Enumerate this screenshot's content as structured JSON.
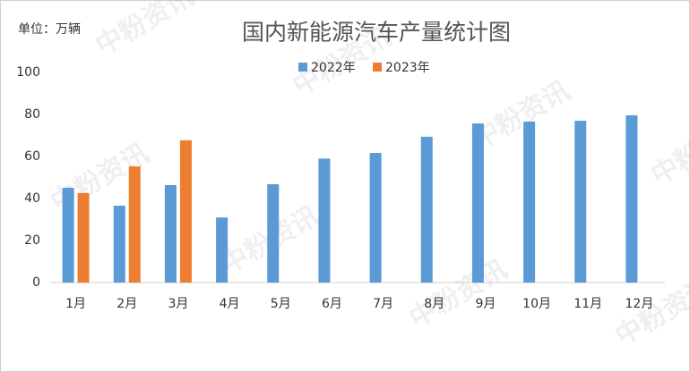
{
  "chart_data": {
    "type": "bar",
    "title": "国内新能源汽车产量统计图",
    "unit_label": "单位：万辆",
    "watermark": "中粉资讯",
    "categories": [
      "1月",
      "2月",
      "3月",
      "4月",
      "5月",
      "6月",
      "7月",
      "8月",
      "9月",
      "10月",
      "11月",
      "12月"
    ],
    "series": [
      {
        "name": "2022年",
        "color": "#5b9bd5",
        "values": [
          45.1,
          36.6,
          46.4,
          31,
          46.8,
          59,
          61.7,
          69.4,
          75.7,
          76.6,
          77,
          79.6
        ]
      },
      {
        "name": "2023年",
        "color": "#ed7d31",
        "values": [
          42.6,
          55.3,
          67.7,
          null,
          null,
          null,
          null,
          null,
          null,
          null,
          null,
          null
        ]
      }
    ],
    "ylim": [
      0,
      100
    ],
    "yticks": [
      0,
      20,
      40,
      60,
      80,
      100
    ],
    "grid": false,
    "legend": "top"
  }
}
